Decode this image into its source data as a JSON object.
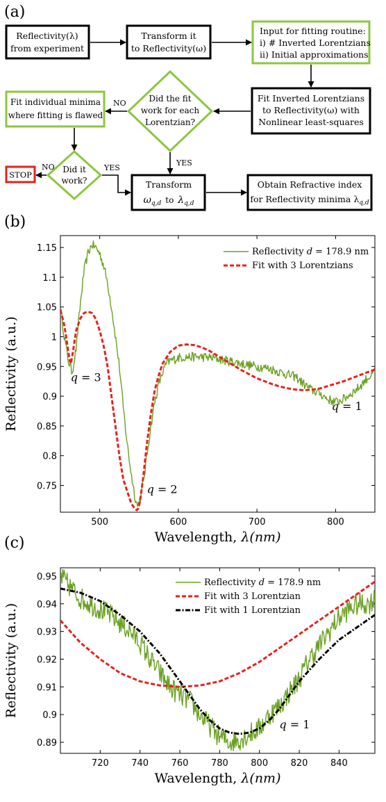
{
  "colors": {
    "green_box": "#8cc63f",
    "black_box": "#000000",
    "red_box": "#e2231a",
    "exp": "#6aa121",
    "fit3": "#e8211a",
    "fit1": "#000000"
  },
  "panel_labels": {
    "a": "(a)",
    "b": "(b)",
    "c": "(c)"
  },
  "flowchart": {
    "box_reflectivity": [
      "Reflectivity(λ)",
      "from experiment"
    ],
    "box_transform": [
      "Transform it",
      "to Reflectivity(ω)"
    ],
    "box_input": [
      "Input for fitting routine:",
      "i) # Inverted Lorentzians",
      "ii) Initial approximations"
    ],
    "box_fit": [
      "Fit Inverted Lorentzians",
      "to Reflectivity(ω) with",
      "Nonlinear least-squares"
    ],
    "diamond_fitwork": [
      "Did the fit",
      "work for each",
      "Lorentzian?"
    ],
    "box_individual": [
      "Fit individual minima",
      "where fitting is flawed"
    ],
    "diamond_didwork": [
      "Did it",
      "work?"
    ],
    "box_stop": "STOP",
    "box_transform2": {
      "line1": "Transform",
      "from": "ω",
      "to": "to",
      "target": "λ",
      "sub": "q,d"
    },
    "box_obtain": [
      "Obtain Refractive index",
      "for Reflectivity minima λ"
    ],
    "obtain_sub": "q,d",
    "label_no1": "NO",
    "label_yes1": "YES",
    "label_no2": "NO",
    "label_yes2": "YES"
  },
  "chart_data": [
    {
      "type": "line",
      "panel": "b",
      "xlabel_text": "Wavelength, ",
      "xlabel_symbol": "λ",
      "xlabel_unit": "(nm)",
      "ylabel": "Reflectivity (a.u.)",
      "xlim": [
        450,
        850
      ],
      "ylim": [
        0.705,
        1.17
      ],
      "xticks": [
        500,
        600,
        700,
        800
      ],
      "yticks": [
        0.75,
        0.8,
        0.85,
        0.9,
        0.95,
        1,
        1.05,
        1.1,
        1.15
      ],
      "ytick_labels": [
        "0.75",
        "0.8",
        "0.85",
        "0.9",
        "0.95",
        "1",
        "1.05",
        "1.1",
        "1.15"
      ],
      "legend_position": "top-right",
      "legend": [
        {
          "label": "Reflectivity d = 178.9 nm",
          "color": "#6aa121"
        },
        {
          "label": "Fit with 3 Lorentzians",
          "color": "#e8211a"
        }
      ],
      "annotations": [
        {
          "text": "q = 3",
          "x": 463,
          "y": 0.925
        },
        {
          "text": "q = 2",
          "x": 560,
          "y": 0.737
        },
        {
          "text": "q = 1",
          "x": 795,
          "y": 0.877
        }
      ],
      "series": [
        {
          "name": "Reflectivity d = 178.9 nm",
          "style": "solid",
          "x": [
            450,
            455,
            460,
            465,
            470,
            475,
            480,
            485,
            490,
            495,
            500,
            505,
            510,
            515,
            520,
            525,
            530,
            535,
            540,
            545,
            548,
            552,
            556,
            560,
            565,
            570,
            575,
            580,
            585,
            590,
            595,
            600,
            610,
            620,
            630,
            640,
            650,
            660,
            670,
            680,
            690,
            700,
            710,
            720,
            730,
            740,
            750,
            760,
            770,
            780,
            790,
            800,
            810,
            820,
            830,
            840,
            850
          ],
          "y": [
            1.05,
            1.0,
            0.96,
            0.94,
            0.98,
            1.05,
            1.11,
            1.14,
            1.155,
            1.15,
            1.14,
            1.12,
            1.09,
            1.05,
            1.0,
            0.95,
            0.88,
            0.82,
            0.77,
            0.73,
            0.715,
            0.73,
            0.76,
            0.8,
            0.85,
            0.89,
            0.92,
            0.94,
            0.955,
            0.96,
            0.962,
            0.965,
            0.966,
            0.966,
            0.966,
            0.965,
            0.963,
            0.96,
            0.958,
            0.955,
            0.952,
            0.95,
            0.948,
            0.945,
            0.94,
            0.936,
            0.932,
            0.92,
            0.91,
            0.905,
            0.895,
            0.89,
            0.895,
            0.905,
            0.915,
            0.93,
            0.94
          ],
          "noise": 0.008
        },
        {
          "name": "Fit with 3 Lorentzians",
          "style": "dashed",
          "x": [
            450,
            455,
            460,
            463,
            466,
            470,
            475,
            480,
            485,
            490,
            495,
            500,
            505,
            510,
            515,
            520,
            525,
            530,
            535,
            540,
            545,
            548,
            551,
            555,
            560,
            565,
            570,
            575,
            580,
            590,
            600,
            610,
            620,
            630,
            640,
            650,
            660,
            670,
            680,
            690,
            700,
            710,
            720,
            730,
            740,
            750,
            760,
            770,
            780,
            790,
            800,
            810,
            820,
            830,
            840,
            850
          ],
          "y": [
            1.045,
            1.02,
            0.975,
            0.952,
            0.975,
            1.01,
            1.03,
            1.04,
            1.042,
            1.04,
            1.03,
            1.01,
            0.985,
            0.95,
            0.9,
            0.85,
            0.8,
            0.76,
            0.74,
            0.72,
            0.71,
            0.708,
            0.72,
            0.76,
            0.82,
            0.87,
            0.91,
            0.935,
            0.955,
            0.975,
            0.985,
            0.987,
            0.986,
            0.982,
            0.976,
            0.968,
            0.96,
            0.952,
            0.944,
            0.937,
            0.93,
            0.925,
            0.92,
            0.916,
            0.913,
            0.911,
            0.91,
            0.911,
            0.913,
            0.917,
            0.921,
            0.925,
            0.93,
            0.935,
            0.94,
            0.945
          ]
        }
      ]
    },
    {
      "type": "line",
      "panel": "c",
      "xlabel_text": "Wavelength, ",
      "xlabel_symbol": "λ",
      "xlabel_unit": "(nm)",
      "ylabel": "Reflectivity (a.u.)",
      "xlim": [
        700,
        858
      ],
      "ylim": [
        0.886,
        0.953
      ],
      "xticks": [
        720,
        740,
        760,
        780,
        800,
        820,
        840
      ],
      "yticks": [
        0.89,
        0.9,
        0.91,
        0.92,
        0.93,
        0.94,
        0.95
      ],
      "ytick_labels": [
        "0.89",
        "0.9",
        "0.91",
        "0.92",
        "0.93",
        "0.94",
        "0.95"
      ],
      "legend_position": "top-right",
      "legend": [
        {
          "label": "Reflectivity d = 178.9 nm",
          "color": "#6aa121"
        },
        {
          "label": "Fit with 3 Lorentzian",
          "color": "#e8211a"
        },
        {
          "label": "Fit with 1 Lorentzian",
          "color": "#000000"
        }
      ],
      "annotations": [
        {
          "text": "q = 1",
          "x": 810,
          "y": 0.895
        }
      ],
      "series": [
        {
          "name": "Reflectivity d = 178.9 nm",
          "style": "solid",
          "x": [
            700,
            705,
            710,
            715,
            720,
            725,
            730,
            735,
            740,
            745,
            750,
            755,
            760,
            765,
            770,
            775,
            780,
            785,
            790,
            795,
            800,
            805,
            810,
            815,
            820,
            825,
            830,
            835,
            840,
            845,
            850,
            855,
            858
          ],
          "y": [
            0.95,
            0.946,
            0.942,
            0.94,
            0.938,
            0.936,
            0.933,
            0.93,
            0.926,
            0.92,
            0.915,
            0.91,
            0.907,
            0.905,
            0.9,
            0.896,
            0.892,
            0.89,
            0.891,
            0.893,
            0.895,
            0.9,
            0.903,
            0.908,
            0.913,
            0.92,
            0.925,
            0.93,
            0.935,
            0.938,
            0.94,
            0.94,
            0.942
          ],
          "noise": 0.004
        },
        {
          "name": "Fit with 3 Lorentzian",
          "style": "dashed",
          "x": [
            700,
            710,
            720,
            730,
            740,
            750,
            760,
            770,
            780,
            790,
            800,
            810,
            820,
            830,
            840,
            850,
            858
          ],
          "y": [
            0.934,
            0.926,
            0.92,
            0.915,
            0.912,
            0.9105,
            0.91,
            0.9105,
            0.912,
            0.915,
            0.919,
            0.924,
            0.929,
            0.934,
            0.939,
            0.944,
            0.948
          ],
          "color_key": "fit3"
        },
        {
          "name": "Fit with 1 Lorentzian",
          "style": "dashdot",
          "x": [
            700,
            710,
            720,
            730,
            740,
            750,
            760,
            770,
            775,
            780,
            785,
            790,
            795,
            800,
            805,
            810,
            815,
            820,
            830,
            840,
            850,
            858
          ],
          "y": [
            0.9455,
            0.944,
            0.941,
            0.936,
            0.93,
            0.922,
            0.912,
            0.902,
            0.898,
            0.895,
            0.8935,
            0.893,
            0.8935,
            0.895,
            0.898,
            0.902,
            0.907,
            0.912,
            0.92,
            0.927,
            0.932,
            0.936
          ],
          "color_key": "fit1"
        }
      ]
    }
  ]
}
